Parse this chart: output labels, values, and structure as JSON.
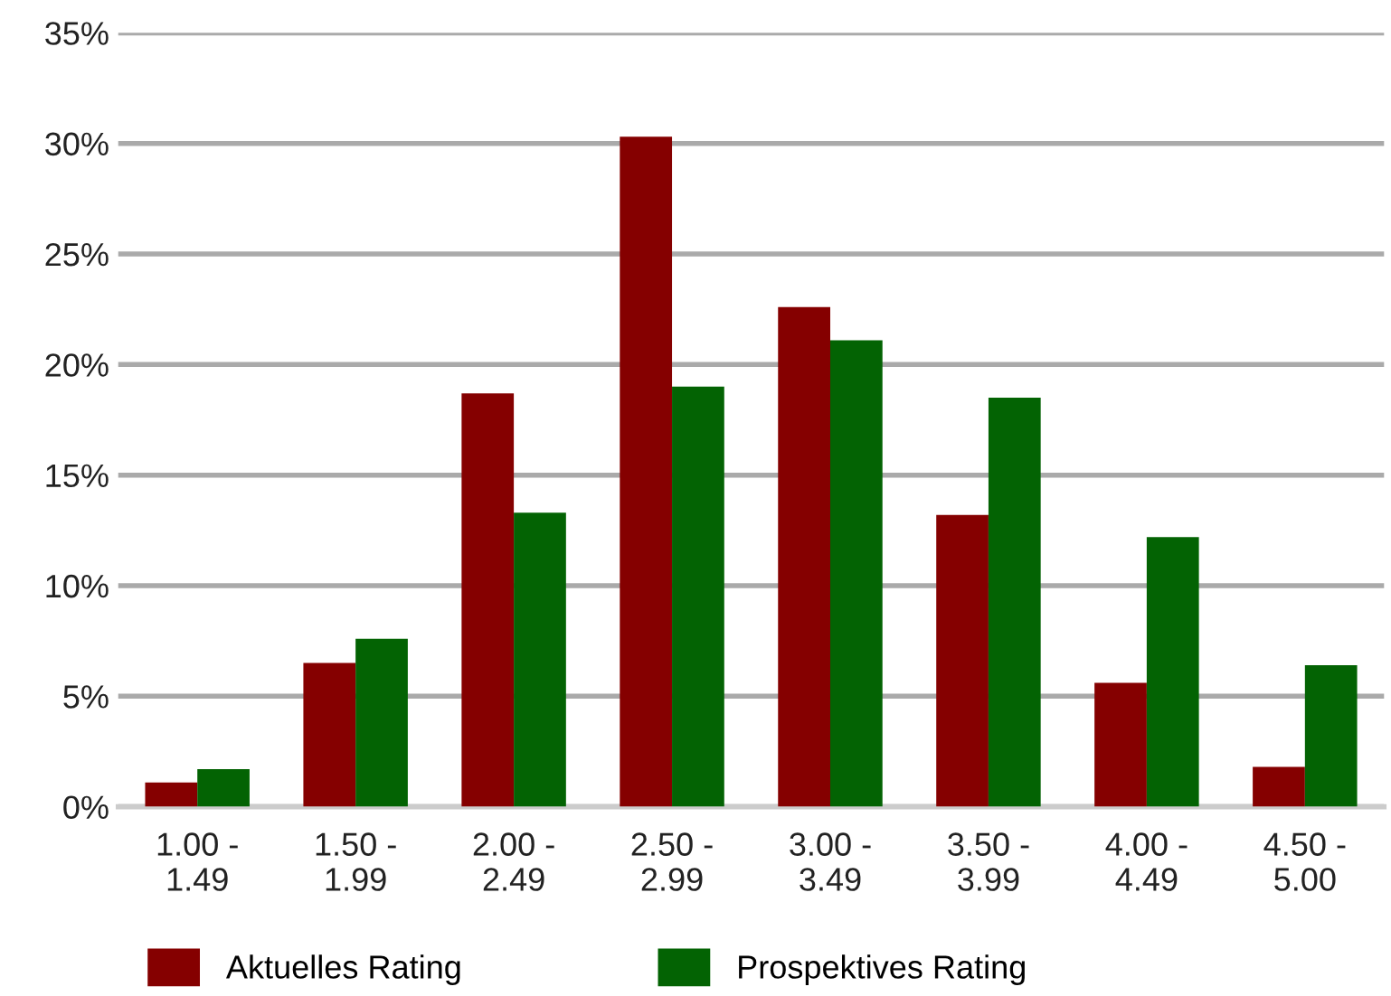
{
  "chart_data": {
    "type": "bar",
    "categories": [
      "1.00 -\n1.49",
      "1.50 -\n1.99",
      "2.00 -\n2.49",
      "2.50 -\n2.99",
      "3.00 -\n3.49",
      "3.50 -\n3.99",
      "4.00 -\n4.49",
      "4.50 -\n5.00"
    ],
    "series": [
      {
        "name": "Aktuelles Rating",
        "color": "#850000",
        "values": [
          1.1,
          6.5,
          18.7,
          30.3,
          22.6,
          13.2,
          5.6,
          1.8
        ]
      },
      {
        "name": "Prospektives Rating",
        "color": "#036303",
        "values": [
          1.7,
          7.6,
          13.3,
          19.0,
          21.1,
          18.5,
          12.2,
          6.4
        ]
      }
    ],
    "ylim": [
      0,
      35
    ],
    "yticks": [
      {
        "value": 0,
        "label": "0%"
      },
      {
        "value": 5,
        "label": "5%"
      },
      {
        "value": 10,
        "label": "10%"
      },
      {
        "value": 15,
        "label": "15%"
      },
      {
        "value": 20,
        "label": "20%"
      },
      {
        "value": 25,
        "label": "25%"
      },
      {
        "value": 30,
        "label": "30%"
      },
      {
        "value": 35,
        "label": "35%"
      }
    ],
    "grid": "y",
    "legend": "bottom left"
  }
}
